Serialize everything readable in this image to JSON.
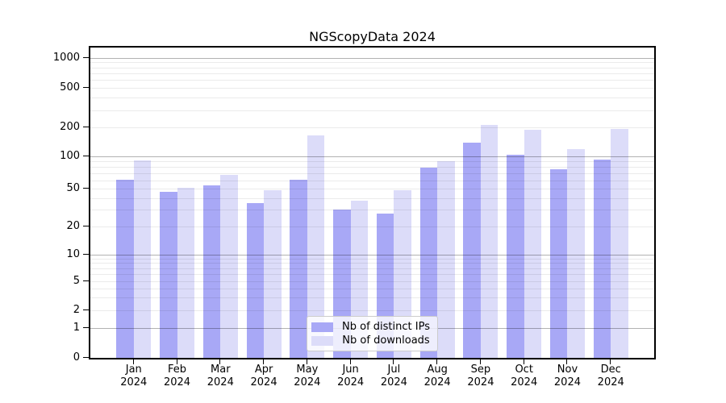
{
  "chart_data": {
    "type": "bar",
    "title": "NGScopyData 2024",
    "months": [
      "Jan",
      "Feb",
      "Mar",
      "Apr",
      "May",
      "Jun",
      "Jul",
      "Aug",
      "Sep",
      "Oct",
      "Nov",
      "Dec"
    ],
    "year": "2024",
    "categories": [
      "Jan 2024",
      "Feb 2024",
      "Mar 2024",
      "Apr 2024",
      "May 2024",
      "Jun 2024",
      "Jul 2024",
      "Aug 2024",
      "Sep 2024",
      "Oct 2024",
      "Nov 2024",
      "Dec 2024"
    ],
    "series": [
      {
        "name": "Nb of distinct IPs",
        "color": "#a8a8f6",
        "values": [
          61,
          46,
          54,
          35,
          61,
          30,
          27,
          78,
          138,
          104,
          76,
          93
        ]
      },
      {
        "name": "Nb of downloads",
        "color": "#dcdcf9",
        "values": [
          92,
          51,
          67,
          48,
          165,
          37,
          48,
          90,
          212,
          190,
          120,
          195
        ]
      }
    ],
    "yscale": "symlog",
    "yticks": [
      0,
      1,
      2,
      5,
      10,
      20,
      50,
      100,
      200,
      500,
      1000
    ],
    "major_grid_values": [
      1,
      10,
      100,
      1000
    ],
    "minor_grid_values": [
      2,
      3,
      4,
      5,
      6,
      7,
      8,
      9,
      20,
      30,
      40,
      50,
      60,
      70,
      80,
      90,
      200,
      300,
      400,
      500,
      600,
      700,
      800,
      900
    ],
    "ylim": [
      0,
      1290
    ],
    "grid": true,
    "legend_position": "lower center",
    "xlabel": "",
    "ylabel": ""
  },
  "colors": {
    "grid_major": "rgba(0,0,0,0.30)",
    "grid_minor": "rgba(0,0,0,0.08)",
    "spine": "#000000",
    "background": "#ffffff",
    "legend_edge": "#cccccc"
  }
}
